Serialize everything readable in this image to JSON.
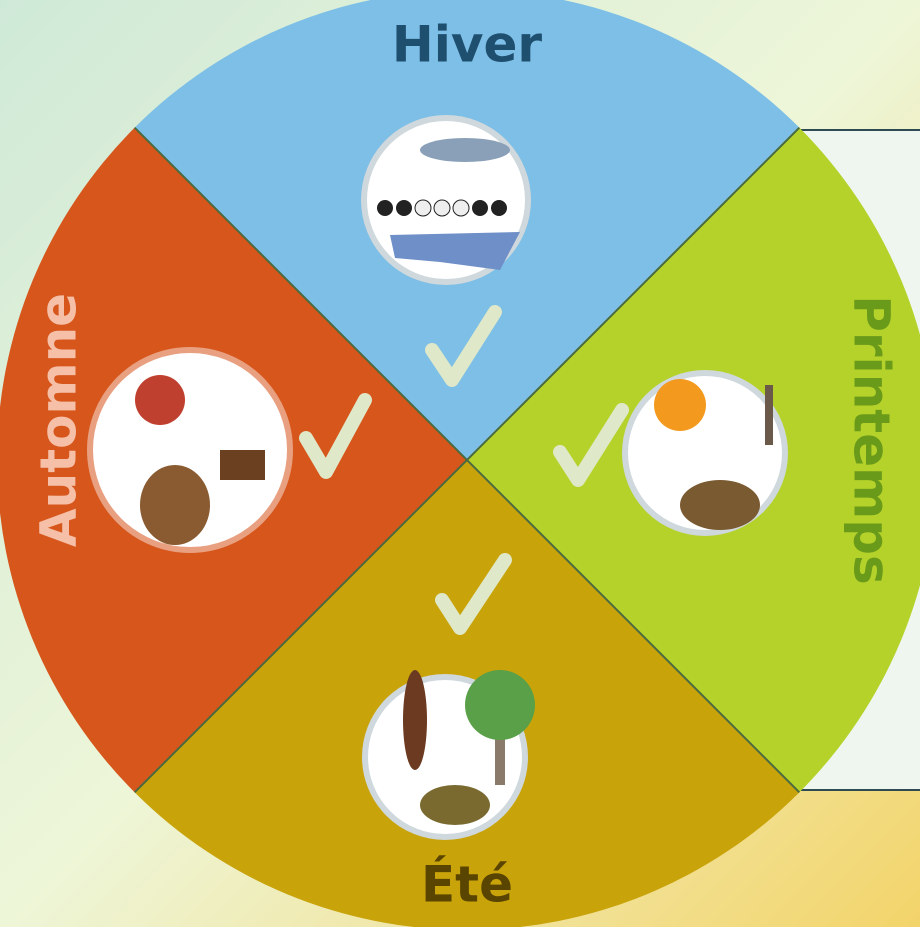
{
  "seasons": [
    {
      "label": "Hiver"
    },
    {
      "label": "Printemps"
    },
    {
      "label": "Été"
    },
    {
      "label": "Automne"
    }
  ]
}
